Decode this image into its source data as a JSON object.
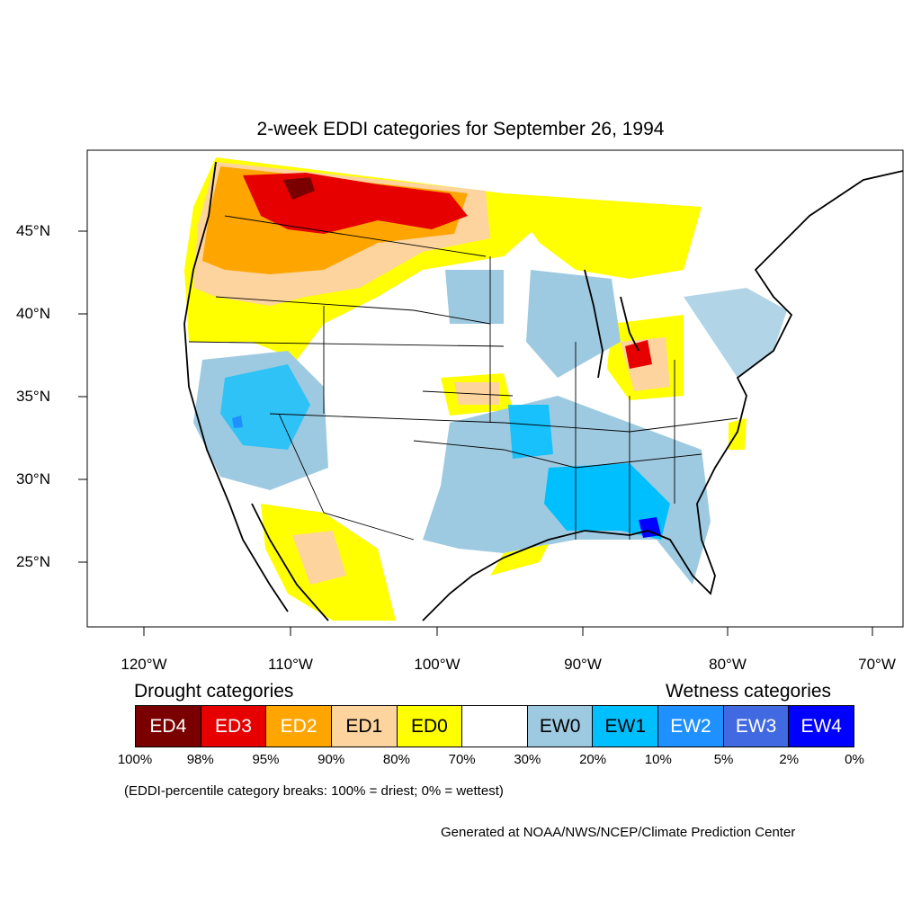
{
  "title": "2-week EDDI categories for September 26, 1994",
  "lat_labels": [
    "45°N",
    "40°N",
    "35°N",
    "30°N",
    "25°N"
  ],
  "lon_labels": [
    "120°W",
    "110°W",
    "100°W",
    "90°W",
    "80°W",
    "70°W"
  ],
  "legend": {
    "drought_heading": "Drought categories",
    "wetness_heading": "Wetness categories",
    "categories": [
      {
        "label": "ED4",
        "color": "#7a0000",
        "text_color": "#ffffff"
      },
      {
        "label": "ED3",
        "color": "#e60000",
        "text_color": "#ffffff"
      },
      {
        "label": "ED2",
        "color": "#ffa500",
        "text_color": "#ffffff"
      },
      {
        "label": "ED1",
        "color": "#fdd49e",
        "text_color": "#000000"
      },
      {
        "label": "ED0",
        "color": "#ffff00",
        "text_color": "#000000"
      },
      {
        "label": "",
        "color": "#ffffff",
        "text_color": "#000000"
      },
      {
        "label": "EW0",
        "color": "#9ecae1",
        "text_color": "#000000"
      },
      {
        "label": "EW1",
        "color": "#00bfff",
        "text_color": "#000000"
      },
      {
        "label": "EW2",
        "color": "#1e90ff",
        "text_color": "#ffffff"
      },
      {
        "label": "EW3",
        "color": "#4169e1",
        "text_color": "#ffffff"
      },
      {
        "label": "EW4",
        "color": "#0000ff",
        "text_color": "#ffffff"
      }
    ],
    "percentiles": [
      "100%",
      "98%",
      "95%",
      "90%",
      "80%",
      "70%",
      "30%",
      "20%",
      "10%",
      "5%",
      "2%",
      "0%"
    ]
  },
  "note": "(EDDI-percentile category breaks: 100% = driest; 0% = wettest)",
  "credit": "Generated at NOAA/NWS/NCEP/Climate Prediction Center"
}
